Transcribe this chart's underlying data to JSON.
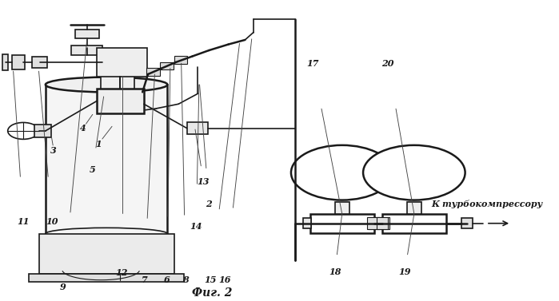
{
  "bg_color": "#ffffff",
  "line_color": "#1a1a1a",
  "figure_caption": "Фиг. 2",
  "arrow_label": "К турбокомпрессору"
}
